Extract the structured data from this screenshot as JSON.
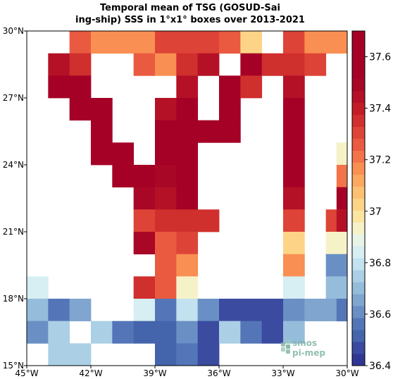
{
  "title": {
    "line1": "Temporal mean of TSG (GOSUD-Sai",
    "line2": "ing-ship) SSS in 1°x1° boxes over 2013-2021"
  },
  "map": {
    "lon_min": -45,
    "lon_max": -30,
    "lat_min": 15,
    "lat_max": 30,
    "x_ticks": [
      {
        "value": -45,
        "label": "45°W"
      },
      {
        "value": -42,
        "label": "42°W"
      },
      {
        "value": -39,
        "label": "39°W"
      },
      {
        "value": -36,
        "label": "36°W"
      },
      {
        "value": -33,
        "label": "33°W"
      },
      {
        "value": -30,
        "label": "30°W"
      }
    ],
    "y_ticks": [
      {
        "value": 15,
        "label": "15°N"
      },
      {
        "value": 18,
        "label": "18°N"
      },
      {
        "value": 21,
        "label": "21°N"
      },
      {
        "value": 24,
        "label": "24°N"
      },
      {
        "value": 27,
        "label": "27°N"
      },
      {
        "value": 30,
        "label": "30°N"
      }
    ],
    "cell_size_deg": 1,
    "value_range": [
      36.4,
      37.7
    ],
    "cells": [
      {
        "lat": 29,
        "lon": -43,
        "v": 37.25
      },
      {
        "lat": 29,
        "lon": -42,
        "v": 37.15
      },
      {
        "lat": 29,
        "lon": -41,
        "v": 37.15
      },
      {
        "lat": 29,
        "lon": -40,
        "v": 37.15
      },
      {
        "lat": 29,
        "lon": -39,
        "v": 37.3
      },
      {
        "lat": 29,
        "lon": -38,
        "v": 37.3
      },
      {
        "lat": 29,
        "lon": -37,
        "v": 37.3
      },
      {
        "lat": 29,
        "lon": -36,
        "v": 37.25
      },
      {
        "lat": 29,
        "lon": -35,
        "v": 37.05
      },
      {
        "lat": 29,
        "lon": -33,
        "v": 37.3
      },
      {
        "lat": 29,
        "lon": -32,
        "v": 37.15
      },
      {
        "lat": 29,
        "lon": -31,
        "v": 37.15
      },
      {
        "lat": 28,
        "lon": -44,
        "v": 37.45
      },
      {
        "lat": 28,
        "lon": -43,
        "v": 37.35
      },
      {
        "lat": 28,
        "lon": -40,
        "v": 37.25
      },
      {
        "lat": 28,
        "lon": -39,
        "v": 37.15
      },
      {
        "lat": 28,
        "lon": -38,
        "v": 37.35
      },
      {
        "lat": 28,
        "lon": -37,
        "v": 37.45
      },
      {
        "lat": 28,
        "lon": -35,
        "v": 37.55
      },
      {
        "lat": 28,
        "lon": -34,
        "v": 37.35
      },
      {
        "lat": 28,
        "lon": -33,
        "v": 37.35
      },
      {
        "lat": 28,
        "lon": -32,
        "v": 37.3
      },
      {
        "lat": 27,
        "lon": -44,
        "v": 37.55
      },
      {
        "lat": 27,
        "lon": -43,
        "v": 37.55
      },
      {
        "lat": 27,
        "lon": -38,
        "v": 37.45
      },
      {
        "lat": 27,
        "lon": -36,
        "v": 37.55
      },
      {
        "lat": 27,
        "lon": -35,
        "v": 37.35
      },
      {
        "lat": 27,
        "lon": -33,
        "v": 37.45
      },
      {
        "lat": 26,
        "lon": -43,
        "v": 37.6
      },
      {
        "lat": 26,
        "lon": -42,
        "v": 37.55
      },
      {
        "lat": 26,
        "lon": -39,
        "v": 37.45
      },
      {
        "lat": 26,
        "lon": -38,
        "v": 37.7
      },
      {
        "lat": 26,
        "lon": -36,
        "v": 37.6
      },
      {
        "lat": 26,
        "lon": -33,
        "v": 37.55
      },
      {
        "lat": 25,
        "lon": -42,
        "v": 37.6
      },
      {
        "lat": 25,
        "lon": -39,
        "v": 37.6
      },
      {
        "lat": 25,
        "lon": -38,
        "v": 37.6
      },
      {
        "lat": 25,
        "lon": -37,
        "v": 37.6
      },
      {
        "lat": 25,
        "lon": -36,
        "v": 37.6
      },
      {
        "lat": 25,
        "lon": -33,
        "v": 37.6
      },
      {
        "lat": 24,
        "lon": -42,
        "v": 37.6
      },
      {
        "lat": 24,
        "lon": -41,
        "v": 37.6
      },
      {
        "lat": 24,
        "lon": -39,
        "v": 37.55
      },
      {
        "lat": 24,
        "lon": -38,
        "v": 37.6
      },
      {
        "lat": 24,
        "lon": -33,
        "v": 37.6
      },
      {
        "lat": 24,
        "lon": -30.5,
        "v": 36.95
      },
      {
        "lat": 23,
        "lon": -41,
        "v": 37.6
      },
      {
        "lat": 23,
        "lon": -40,
        "v": 37.55
      },
      {
        "lat": 23,
        "lon": -39,
        "v": 37.5
      },
      {
        "lat": 23,
        "lon": -38,
        "v": 37.7
      },
      {
        "lat": 23,
        "lon": -33,
        "v": 37.55
      },
      {
        "lat": 23,
        "lon": -30.5,
        "v": 37.2
      },
      {
        "lat": 22,
        "lon": -40,
        "v": 37.5
      },
      {
        "lat": 22,
        "lon": -39,
        "v": 37.45
      },
      {
        "lat": 22,
        "lon": -38,
        "v": 37.7
      },
      {
        "lat": 22,
        "lon": -33,
        "v": 37.45
      },
      {
        "lat": 22,
        "lon": -30.5,
        "v": 37.55
      },
      {
        "lat": 21,
        "lon": -40,
        "v": 37.3
      },
      {
        "lat": 21,
        "lon": -39,
        "v": 37.35
      },
      {
        "lat": 21,
        "lon": -38,
        "v": 37.35
      },
      {
        "lat": 21,
        "lon": -37,
        "v": 37.35
      },
      {
        "lat": 21,
        "lon": -33,
        "v": 37.3
      },
      {
        "lat": 21,
        "lon": -31,
        "v": 37.3
      },
      {
        "lat": 21,
        "lon": -30.5,
        "v": 37.45
      },
      {
        "lat": 20,
        "lon": -40,
        "v": 37.5
      },
      {
        "lat": 20,
        "lon": -39,
        "v": 37.25
      },
      {
        "lat": 20,
        "lon": -38,
        "v": 37.3
      },
      {
        "lat": 20,
        "lon": -33,
        "v": 37.05
      },
      {
        "lat": 20,
        "lon": -31,
        "v": 36.95
      },
      {
        "lat": 19,
        "lon": -39,
        "v": 37.25
      },
      {
        "lat": 19,
        "lon": -38,
        "v": 37.15
      },
      {
        "lat": 19,
        "lon": -33,
        "v": 37.15
      },
      {
        "lat": 19,
        "lon": -31,
        "v": 36.6
      },
      {
        "lat": 18,
        "lon": -45,
        "v": 36.85
      },
      {
        "lat": 18,
        "lon": -40,
        "v": 37.35
      },
      {
        "lat": 18,
        "lon": -39,
        "v": 37.25
      },
      {
        "lat": 18,
        "lon": -38,
        "v": 36.95
      },
      {
        "lat": 18,
        "lon": -33,
        "v": 36.85
      },
      {
        "lat": 18,
        "lon": -31,
        "v": 36.7
      },
      {
        "lat": 17,
        "lon": -45,
        "v": 36.7
      },
      {
        "lat": 17,
        "lon": -44,
        "v": 36.55
      },
      {
        "lat": 17,
        "lon": -43,
        "v": 36.65
      },
      {
        "lat": 17,
        "lon": -40,
        "v": 36.85
      },
      {
        "lat": 17,
        "lon": -39,
        "v": 36.55
      },
      {
        "lat": 17,
        "lon": -38,
        "v": 36.8
      },
      {
        "lat": 17,
        "lon": -37,
        "v": 36.6
      },
      {
        "lat": 17,
        "lon": -36,
        "v": 36.45
      },
      {
        "lat": 17,
        "lon": -35,
        "v": 36.45
      },
      {
        "lat": 17,
        "lon": -34,
        "v": 36.45
      },
      {
        "lat": 17,
        "lon": -33,
        "v": 36.6
      },
      {
        "lat": 17,
        "lon": -32,
        "v": 36.65
      },
      {
        "lat": 17,
        "lon": -31,
        "v": 36.65
      },
      {
        "lat": 17,
        "lon": -30.5,
        "v": 36.55
      },
      {
        "lat": 16,
        "lon": -45,
        "v": 36.6
      },
      {
        "lat": 16,
        "lon": -44,
        "v": 36.75
      },
      {
        "lat": 16,
        "lon": -42,
        "v": 36.75
      },
      {
        "lat": 16,
        "lon": -41,
        "v": 36.55
      },
      {
        "lat": 16,
        "lon": -40,
        "v": 36.5
      },
      {
        "lat": 16,
        "lon": -39,
        "v": 36.5
      },
      {
        "lat": 16,
        "lon": -38,
        "v": 36.6
      },
      {
        "lat": 16,
        "lon": -37,
        "v": 36.45
      },
      {
        "lat": 16,
        "lon": -36,
        "v": 36.75
      },
      {
        "lat": 16,
        "lon": -35,
        "v": 36.55
      },
      {
        "lat": 16,
        "lon": -34,
        "v": 36.45
      },
      {
        "lat": 16,
        "lon": -33,
        "v": 36.7
      },
      {
        "lat": 15,
        "lon": -44,
        "v": 36.75
      },
      {
        "lat": 15,
        "lon": -43,
        "v": 36.75
      },
      {
        "lat": 15,
        "lon": -39,
        "v": 36.5
      },
      {
        "lat": 15,
        "lon": -38,
        "v": 36.55
      },
      {
        "lat": 15,
        "lon": -37,
        "v": 36.45
      }
    ]
  },
  "colorbar": {
    "bins": 28,
    "min": 36.4,
    "max": 37.7,
    "ticks": [
      "36.4",
      "36.6",
      "36.8",
      "37",
      "37.2",
      "37.4",
      "37.6"
    ],
    "colors": [
      "#313695",
      "#3a4ba0",
      "#4465ac",
      "#5476b8",
      "#6a8fc4",
      "#80a6d0",
      "#95bcdb",
      "#abd0e5",
      "#c1e2ee",
      "#d7eef2",
      "#e8f4e8",
      "#f5f2c8",
      "#fbe5a0",
      "#fdd487",
      "#fdbf71",
      "#fca85f",
      "#f98f52",
      "#f3744a",
      "#ea5a40",
      "#dd4437",
      "#cf2f2d",
      "#c21d27",
      "#b51126",
      "#a80726",
      "#a50026",
      "#a50026",
      "#a50026",
      "#a50026"
    ]
  },
  "logo": {
    "line1": "smos",
    "line2": "pi-mep"
  }
}
